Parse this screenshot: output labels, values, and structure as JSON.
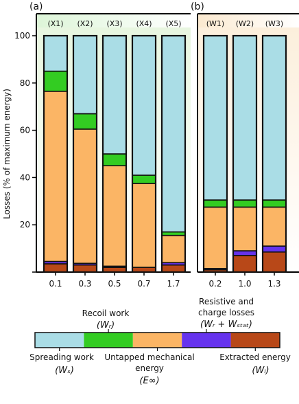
{
  "chart_data": {
    "type": "bar",
    "stacked": true,
    "ylabel": "Losses (% of maximum energy)",
    "ylim": [
      0,
      100
    ],
    "yticks": [
      20,
      40,
      60,
      80,
      100
    ],
    "component_order_bottom_to_top": [
      "extracted",
      "resistive",
      "untapped",
      "recoil",
      "spreading"
    ],
    "colors": {
      "spreading": "#aadde6",
      "recoil": "#33cc22",
      "untapped": "#fbb565",
      "resistive": "#6633ee",
      "extracted": "#b84818"
    },
    "panels": [
      {
        "label": "(a)",
        "header_gradient": [
          "#ddf5d8",
          "#ffffff"
        ],
        "background_gradient": [
          "#e8f6e0",
          "#ffffff"
        ],
        "bars": [
          {
            "name": "(X1)",
            "x": "0.1",
            "extracted": 3.5,
            "resistive": 1.0,
            "untapped": 72.0,
            "recoil": 8.5,
            "spreading": 15.0
          },
          {
            "name": "(X2)",
            "x": "0.3",
            "extracted": 3.0,
            "resistive": 0.7,
            "untapped": 56.8,
            "recoil": 6.5,
            "spreading": 33.0
          },
          {
            "name": "(X3)",
            "x": "0.5",
            "extracted": 2.0,
            "resistive": 0.5,
            "untapped": 42.5,
            "recoil": 5.0,
            "spreading": 50.0
          },
          {
            "name": "(X4)",
            "x": "0.7",
            "extracted": 2.0,
            "resistive": 0.0,
            "untapped": 35.5,
            "recoil": 3.5,
            "spreading": 59.0
          },
          {
            "name": "(X5)",
            "x": "1.7",
            "extracted": 3.0,
            "resistive": 1.0,
            "untapped": 11.5,
            "recoil": 1.5,
            "spreading": 83.0
          }
        ]
      },
      {
        "label": "(b)",
        "header_gradient": [
          "#fbe9cf",
          "#ffffff"
        ],
        "background_gradient": [
          "#fcefdc",
          "#ffffff"
        ],
        "bars": [
          {
            "name": "(W1)",
            "x": "0.2",
            "extracted": 1.0,
            "resistive": 0.5,
            "untapped": 26.0,
            "recoil": 3.0,
            "spreading": 69.5
          },
          {
            "name": "(W2)",
            "x": "1.0",
            "extracted": 7.0,
            "resistive": 2.0,
            "untapped": 18.5,
            "recoil": 3.0,
            "spreading": 69.5
          },
          {
            "name": "(W3)",
            "x": "1.3",
            "extracted": 8.5,
            "resistive": 2.5,
            "untapped": 16.5,
            "recoil": 3.0,
            "spreading": 69.5
          }
        ]
      }
    ],
    "legend": [
      {
        "key": "spreading",
        "label": "Spreading work",
        "symbol": "(Wₛ)"
      },
      {
        "key": "recoil",
        "label": "Recoil work",
        "symbol": "(Wᵣ)"
      },
      {
        "key": "untapped",
        "label": "Untapped mechanical energy",
        "symbol": "(E∞)"
      },
      {
        "key": "resistive",
        "label": "Resistive and charge losses",
        "symbol": "(Wᵣ + Wₛₜₐₜ)"
      },
      {
        "key": "extracted",
        "label": "Extracted energy",
        "symbol": "(Wₗ)"
      }
    ]
  }
}
